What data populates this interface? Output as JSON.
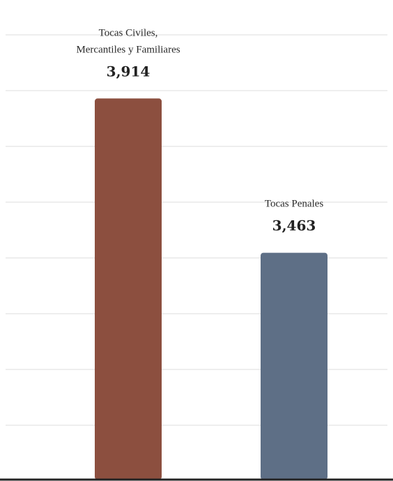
{
  "chart_data": {
    "type": "bar",
    "categories": [
      "Tocas Civiles, Mercantiles y Familiares",
      "Tocas Penales"
    ],
    "category_label_lines": [
      [
        "Tocas Civiles,",
        "Mercantiles y Familiares"
      ],
      [
        "Tocas Penales"
      ]
    ],
    "values": [
      3914,
      3463
    ],
    "value_labels": [
      "3,914",
      "3,463"
    ],
    "colors": [
      "#8c4f3f",
      "#5e6f86"
    ],
    "ylim": [
      2800,
      4100
    ],
    "grid": true,
    "title": "",
    "xlabel": "",
    "ylabel": ""
  }
}
